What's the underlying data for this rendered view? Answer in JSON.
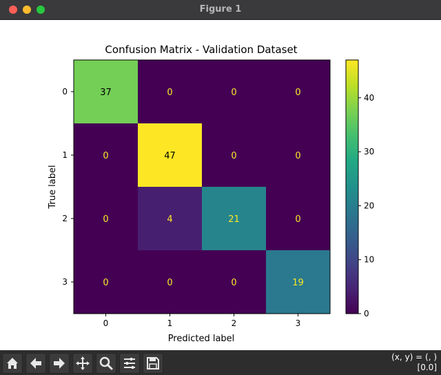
{
  "window": {
    "title": "Figure 1"
  },
  "chart_data": {
    "type": "heatmap",
    "title": "Confusion Matrix - Validation Dataset",
    "xlabel": "Predicted label",
    "ylabel": "True label",
    "x_ticks": [
      "0",
      "1",
      "2",
      "3"
    ],
    "y_ticks": [
      "0",
      "1",
      "2",
      "3"
    ],
    "matrix": [
      [
        37,
        0,
        0,
        0
      ],
      [
        0,
        47,
        0,
        0
      ],
      [
        0,
        4,
        21,
        0
      ],
      [
        0,
        0,
        0,
        19
      ]
    ],
    "colormap": "viridis",
    "color_range": [
      0,
      47
    ],
    "colorbar_ticks": [
      "0",
      "10",
      "20",
      "30",
      "40"
    ],
    "text_color_light": "#fde725",
    "text_color_dark": "#000000"
  },
  "toolbar": {
    "tools": [
      "home-icon",
      "back-icon",
      "forward-icon",
      "pan-icon",
      "zoom-icon",
      "configure-subplots-icon",
      "save-icon"
    ],
    "coords_line1": "(x, y) = (, )",
    "coords_line2": "[0.0]"
  }
}
